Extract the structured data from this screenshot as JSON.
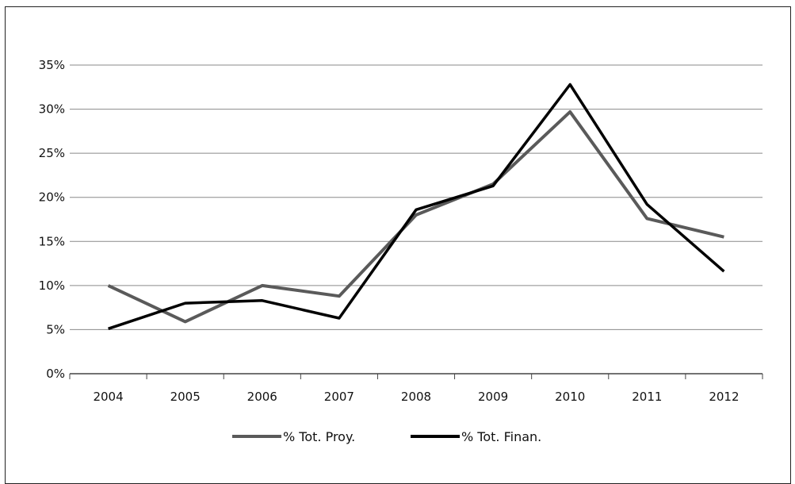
{
  "chart_data": {
    "type": "line",
    "title": "",
    "xlabel": "",
    "ylabel": "",
    "categories": [
      "2004",
      "2005",
      "2006",
      "2007",
      "2008",
      "2009",
      "2010",
      "2011",
      "2012"
    ],
    "ylim": [
      0,
      35
    ],
    "yticks": [
      0,
      5,
      10,
      15,
      20,
      25,
      30,
      35
    ],
    "ytick_labels": [
      "0%",
      "5%",
      "10%",
      "15%",
      "20%",
      "25%",
      "30%",
      "35%"
    ],
    "grid": "horizontal",
    "legend_position": "bottom",
    "series": [
      {
        "name": "% Tot. Proy.",
        "color": "#5a5a5a",
        "values": [
          10.0,
          5.9,
          10.0,
          8.8,
          18.0,
          21.5,
          29.7,
          17.6,
          15.5
        ]
      },
      {
        "name": "% Tot. Finan.",
        "color": "#000000",
        "values": [
          5.1,
          8.0,
          8.3,
          6.3,
          18.6,
          21.3,
          32.8,
          19.2,
          11.6
        ]
      }
    ]
  }
}
